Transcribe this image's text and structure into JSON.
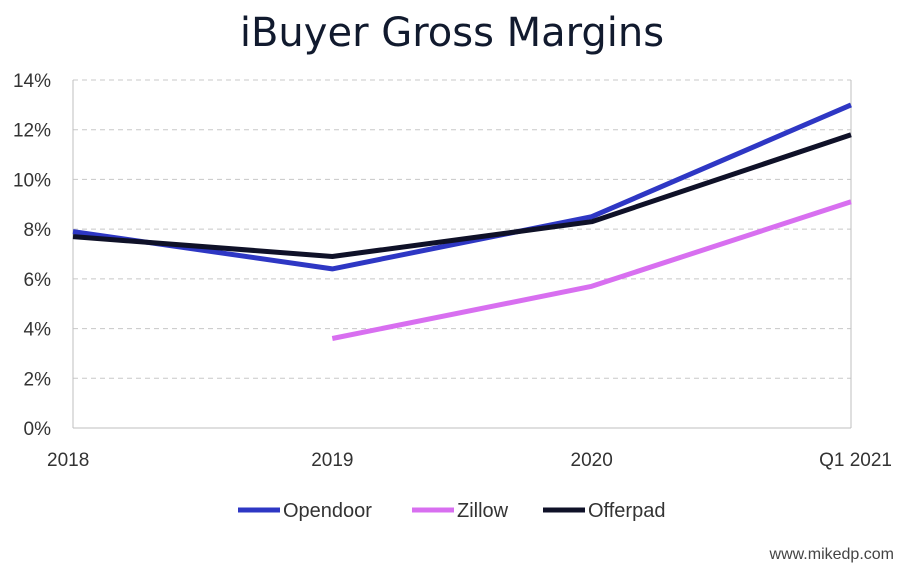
{
  "chart_data": {
    "type": "line",
    "title": "iBuyer Gross Margins",
    "categories": [
      "2018",
      "2019",
      "2020",
      "Q1 2021"
    ],
    "y_ticks": [
      "0%",
      "2%",
      "4%",
      "6%",
      "8%",
      "10%",
      "12%",
      "14%"
    ],
    "ylim": [
      0,
      14
    ],
    "y_unit": "%",
    "grid": true,
    "legend_position": "bottom",
    "series": [
      {
        "name": "Opendoor",
        "color": "#2e37c4",
        "values": [
          7.9,
          6.4,
          8.5,
          13.0
        ]
      },
      {
        "name": "Zillow",
        "color": "#d86ff0",
        "values": [
          null,
          3.6,
          5.7,
          9.1
        ]
      },
      {
        "name": "Offerpad",
        "color": "#0f1128",
        "values": [
          7.7,
          6.9,
          8.3,
          11.8
        ]
      }
    ],
    "credit": "www.mikedp.com"
  }
}
